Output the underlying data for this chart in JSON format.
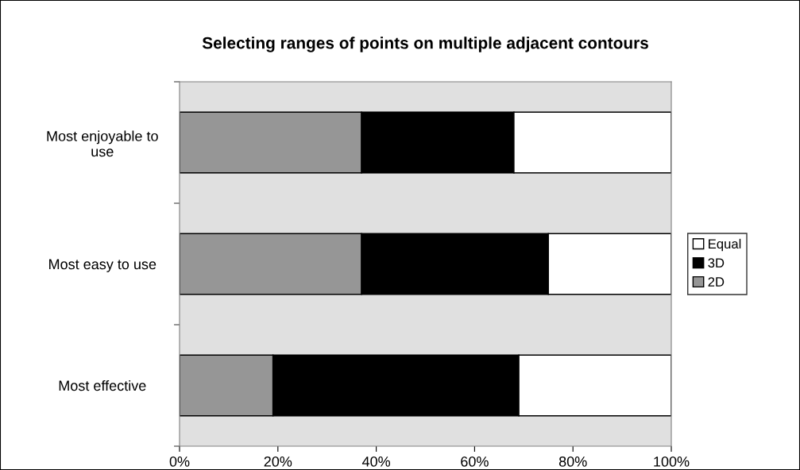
{
  "chart_data": {
    "type": "bar",
    "orientation": "horizontal",
    "stacked": true,
    "title": "Selecting ranges of points on multiple adjacent contours",
    "categories": [
      "Most enjoyable to\nuse",
      "Most easy to use",
      "Most effective"
    ],
    "series": [
      {
        "name": "2D",
        "color": "#969696",
        "values": [
          37,
          37,
          19
        ]
      },
      {
        "name": "3D",
        "color": "#000000",
        "values": [
          31,
          38,
          50
        ]
      },
      {
        "name": "Equal",
        "color": "#ffffff",
        "values": [
          32,
          25,
          31
        ]
      }
    ],
    "xlim": [
      0,
      100
    ],
    "xticks": [
      {
        "value": 0,
        "label": "0%"
      },
      {
        "value": 20,
        "label": "20%"
      },
      {
        "value": 40,
        "label": "40%"
      },
      {
        "value": 60,
        "label": "60%"
      },
      {
        "value": 80,
        "label": "80%"
      },
      {
        "value": 100,
        "label": "100%"
      }
    ],
    "grid": false,
    "legend": "right"
  }
}
